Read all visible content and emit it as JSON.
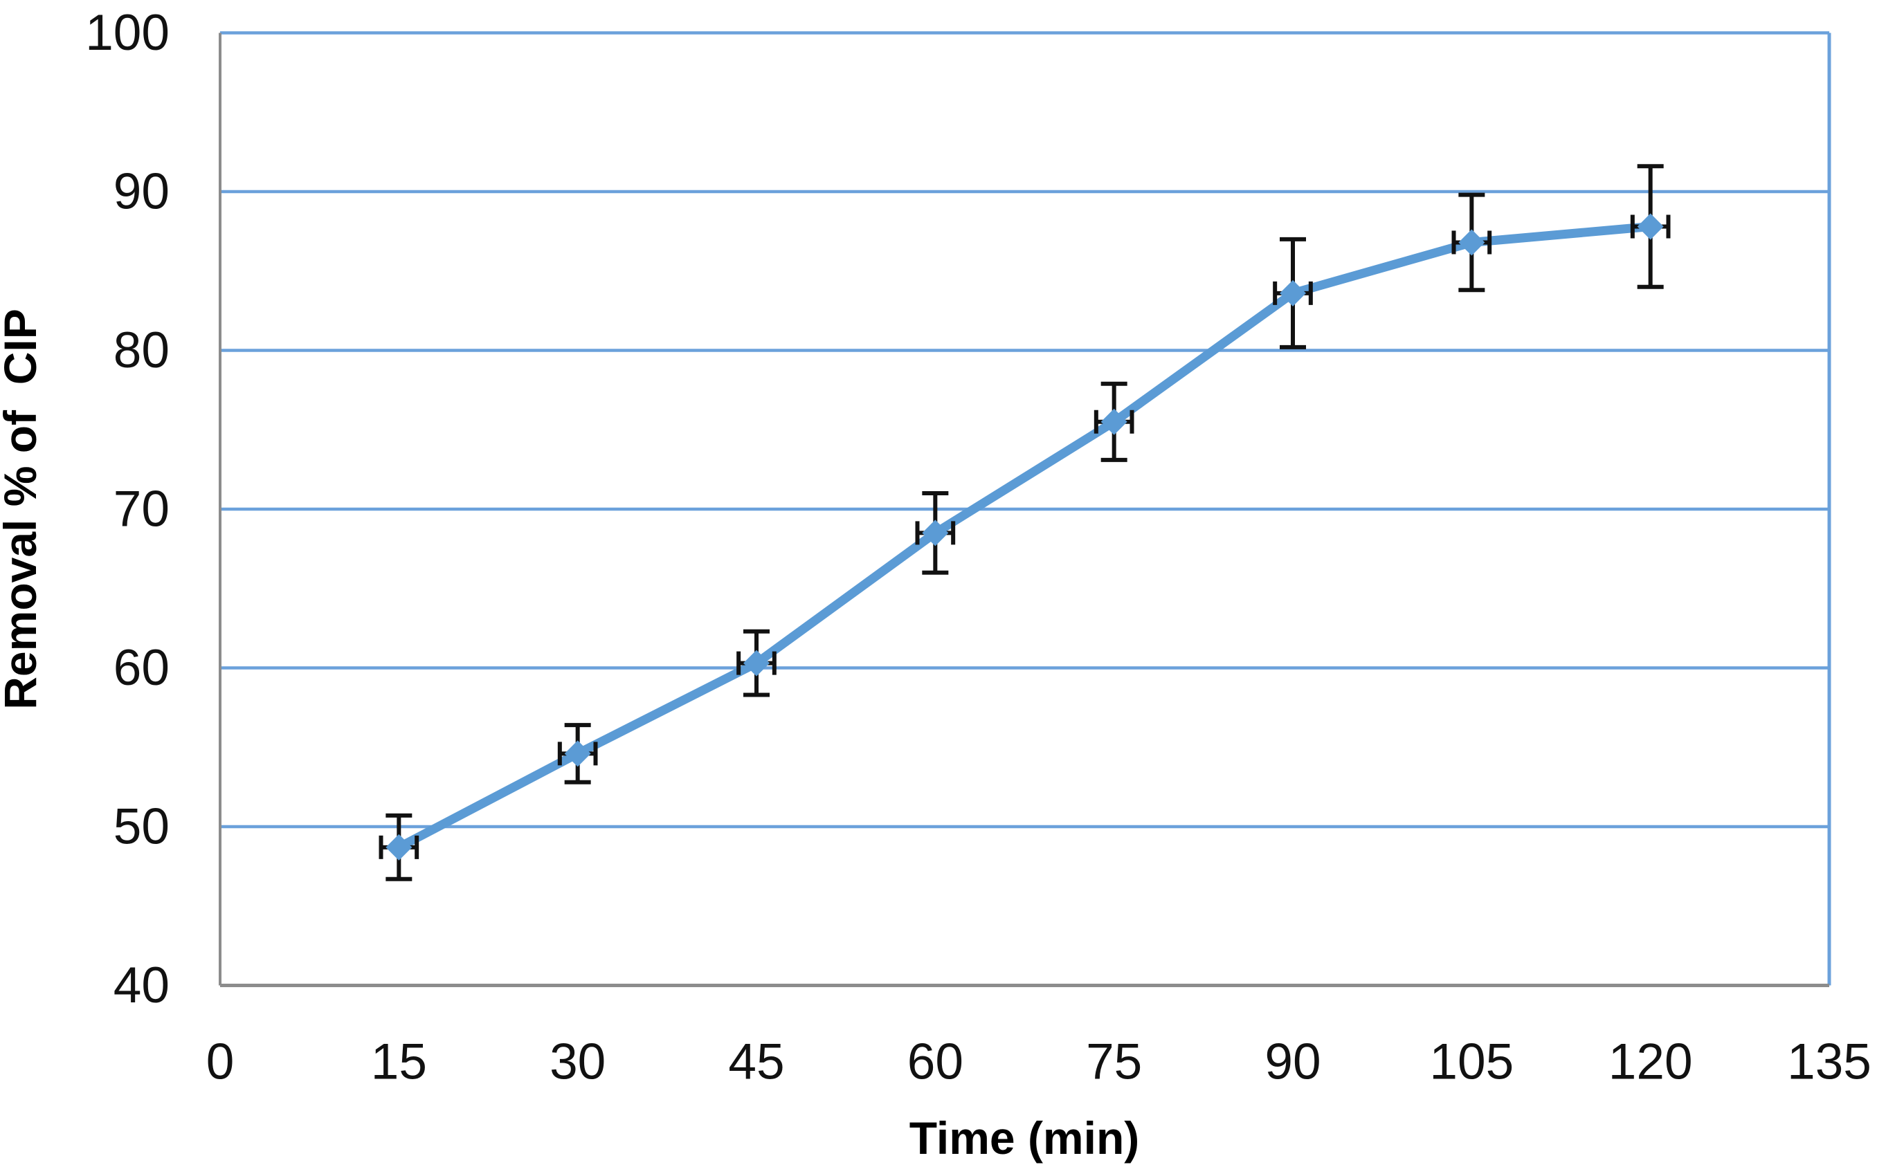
{
  "chart_data": {
    "type": "line",
    "title": "",
    "xlabel": "Time (min)",
    "ylabel": "Removal % of  CIP",
    "xlim": [
      0,
      135
    ],
    "ylim": [
      40,
      100
    ],
    "xticks": [
      0,
      15,
      30,
      45,
      60,
      75,
      90,
      105,
      120,
      135
    ],
    "yticks": [
      40,
      50,
      60,
      70,
      80,
      90,
      100
    ],
    "grid": "horizontal",
    "legend": "none",
    "x": [
      15,
      30,
      45,
      60,
      75,
      90,
      105,
      120
    ],
    "series": [
      {
        "name": "Removal % of CIP",
        "values": [
          48.7,
          54.6,
          60.3,
          68.5,
          75.5,
          83.6,
          86.8,
          87.8
        ],
        "y_errors": [
          2.0,
          1.8,
          2.0,
          2.5,
          2.4,
          3.4,
          3.0,
          3.8
        ],
        "x_error": 1.5,
        "marker": "diamond",
        "line_style": "solid"
      }
    ],
    "style": {
      "series_color": "#5B9BD5",
      "gridline_color": "#6BA1DB",
      "plot_border_color": "#6BA1DB",
      "axis_color": "#8C8C8C",
      "error_bar_color": "#111111",
      "tick_label_color": "#111111",
      "background": "#FFFFFF"
    }
  }
}
